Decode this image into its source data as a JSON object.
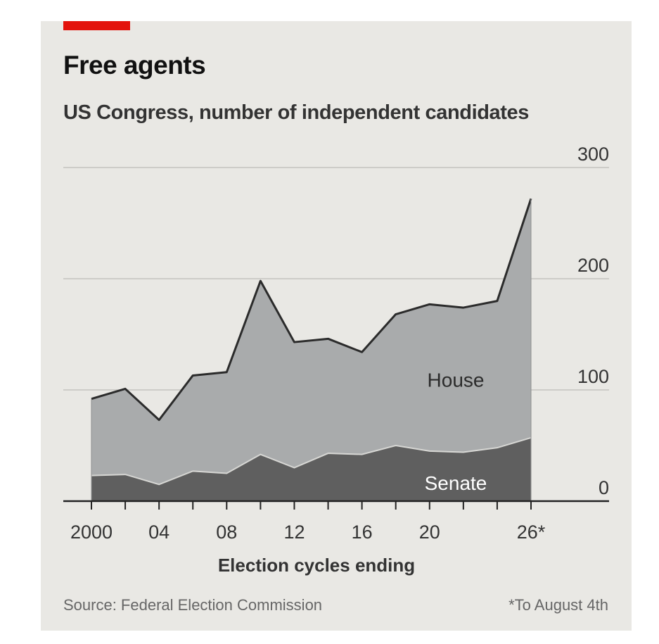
{
  "chart_data": {
    "type": "area",
    "title": "Free agents",
    "subtitle": "US Congress, number of independent candidates",
    "xlabel": "Election cycles ending",
    "x": [
      2000,
      2002,
      2004,
      2006,
      2008,
      2010,
      2012,
      2014,
      2016,
      2018,
      2020,
      2022,
      2024,
      2026
    ],
    "x_tick_values": [
      2000,
      2004,
      2008,
      2012,
      2016,
      2020,
      2026
    ],
    "x_tick_labels": [
      "2000",
      "04",
      "08",
      "12",
      "16",
      "20",
      "26*"
    ],
    "y_ticks": [
      0,
      100,
      200,
      300
    ],
    "y_tick_labels": [
      "0",
      "100",
      "200",
      "300"
    ],
    "ylim": [
      0,
      300
    ],
    "stacked": true,
    "grid": true,
    "series": [
      {
        "name": "Senate",
        "values": [
          23,
          24,
          15,
          27,
          25,
          42,
          30,
          43,
          42,
          50,
          45,
          44,
          48,
          57
        ],
        "color": "#5f5f5f"
      },
      {
        "name": "House",
        "values": [
          69,
          77,
          58,
          86,
          91,
          156,
          113,
          103,
          92,
          118,
          132,
          130,
          132,
          215
        ],
        "color": "#a9abac"
      }
    ],
    "source": "Source: Federal Election Commission",
    "footnote": "*To August 4th"
  },
  "colors": {
    "accent": "#e3120b",
    "background": "#e9e8e4",
    "senate": "#5f5f5f",
    "house": "#a9abac",
    "outline": "#2b2b2b"
  }
}
